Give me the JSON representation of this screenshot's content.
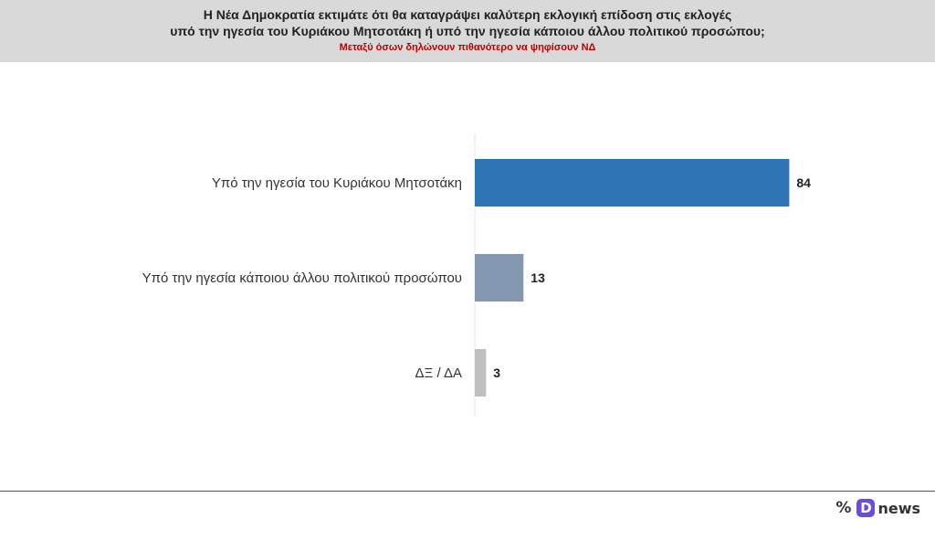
{
  "header": {
    "title_line1": "Η Νέα Δημοκρατία εκτιμάτε ότι θα καταγράψει καλύτερη εκλογική επίδοση στις εκλογές",
    "title_line2": "υπό την ηγεσία του Κυριάκου Μητσοτάκη ή υπό την ηγεσία κάποιου άλλου πολιτικού προσώπου;",
    "subtitle": "Μεταξύ όσων δηλώνουν πιθανότερο να ψηφίσουν ΝΔ",
    "subtitle_color": "#c00000",
    "background": "#d9d9d9"
  },
  "chart_data": {
    "type": "bar",
    "orientation": "horizontal",
    "categories": [
      "Υπό την ηγεσία του Κυριάκου Μητσοτάκη",
      "Υπό την ηγεσία κάποιου άλλου πολιτικού προσώπου",
      "ΔΞ / ΔΑ"
    ],
    "values": [
      84,
      13,
      3
    ],
    "value_labels": [
      "84",
      "13",
      "3"
    ],
    "colors": [
      "#2e75b6",
      "#8497b0",
      "#bfbfbf"
    ],
    "xlim": [
      0,
      100
    ],
    "grid": false,
    "legend": "none"
  },
  "footer": {
    "percent_icon": "percent-icon",
    "badge_letter": "D",
    "brand": "news",
    "badge_color": "#6a4fd6"
  }
}
